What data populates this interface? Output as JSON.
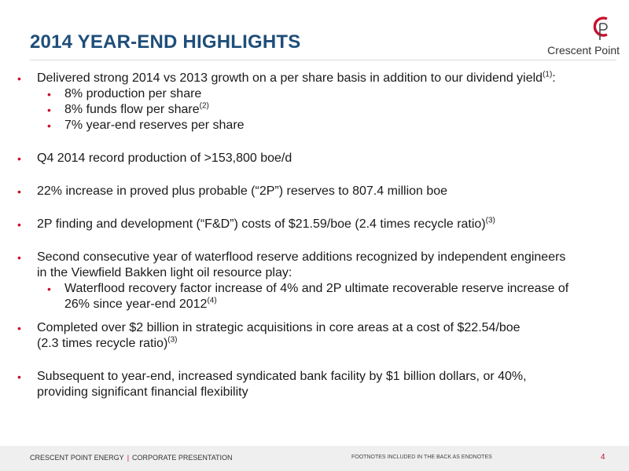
{
  "header": {
    "title": "2014 YEAR-END HIGHLIGHTS",
    "logo_text": "Crescent Point",
    "accent_color": "#c8102e",
    "title_color": "#1f4e79"
  },
  "bullets": {
    "b1": {
      "text": "Delivered strong 2014 vs 2013 growth on a per share basis in addition to our dividend yield",
      "note": "(1)",
      "tail": ":",
      "subs": [
        {
          "text": "8% production per share",
          "note": ""
        },
        {
          "text": "8% funds flow per share",
          "note": "(2)"
        },
        {
          "text": "7% year-end reserves per share",
          "note": ""
        }
      ]
    },
    "b2": {
      "text": "Q4 2014 record production of >153,800 boe/d"
    },
    "b3": {
      "text": "22% increase in proved plus probable (“2P”) reserves to 807.4 million boe"
    },
    "b4": {
      "text": "2P finding and development (“F&D”) costs of $21.59/boe (2.4 times recycle ratio)",
      "note": "(3)"
    },
    "b5": {
      "line1": "Second consecutive year of waterflood reserve additions recognized by independent engineers",
      "line2": "in the Viewfield Bakken light oil resource play:",
      "sub_line1": "Waterflood recovery factor increase of 4% and 2P ultimate recoverable reserve increase of",
      "sub_line2": "26% since year-end 2012",
      "sub_note": "(4)"
    },
    "b6": {
      "line1": "Completed over $2 billion in strategic acquisitions in core areas at a cost of $22.54/boe",
      "line2": "(2.3 times recycle ratio)",
      "note": "(3)"
    },
    "b7": {
      "line1": "Subsequent to year-end, increased syndicated bank facility by $1 billion dollars, or 40%,",
      "line2": "providing significant financial flexibility"
    }
  },
  "footer": {
    "company": "CRESCENT POINT ENERGY",
    "separator": "|",
    "doc": "CORPORATE PRESENTATION",
    "note": "FOOTNOTES INCLUDED IN THE BACK AS ENDNOTES",
    "page": "4"
  }
}
